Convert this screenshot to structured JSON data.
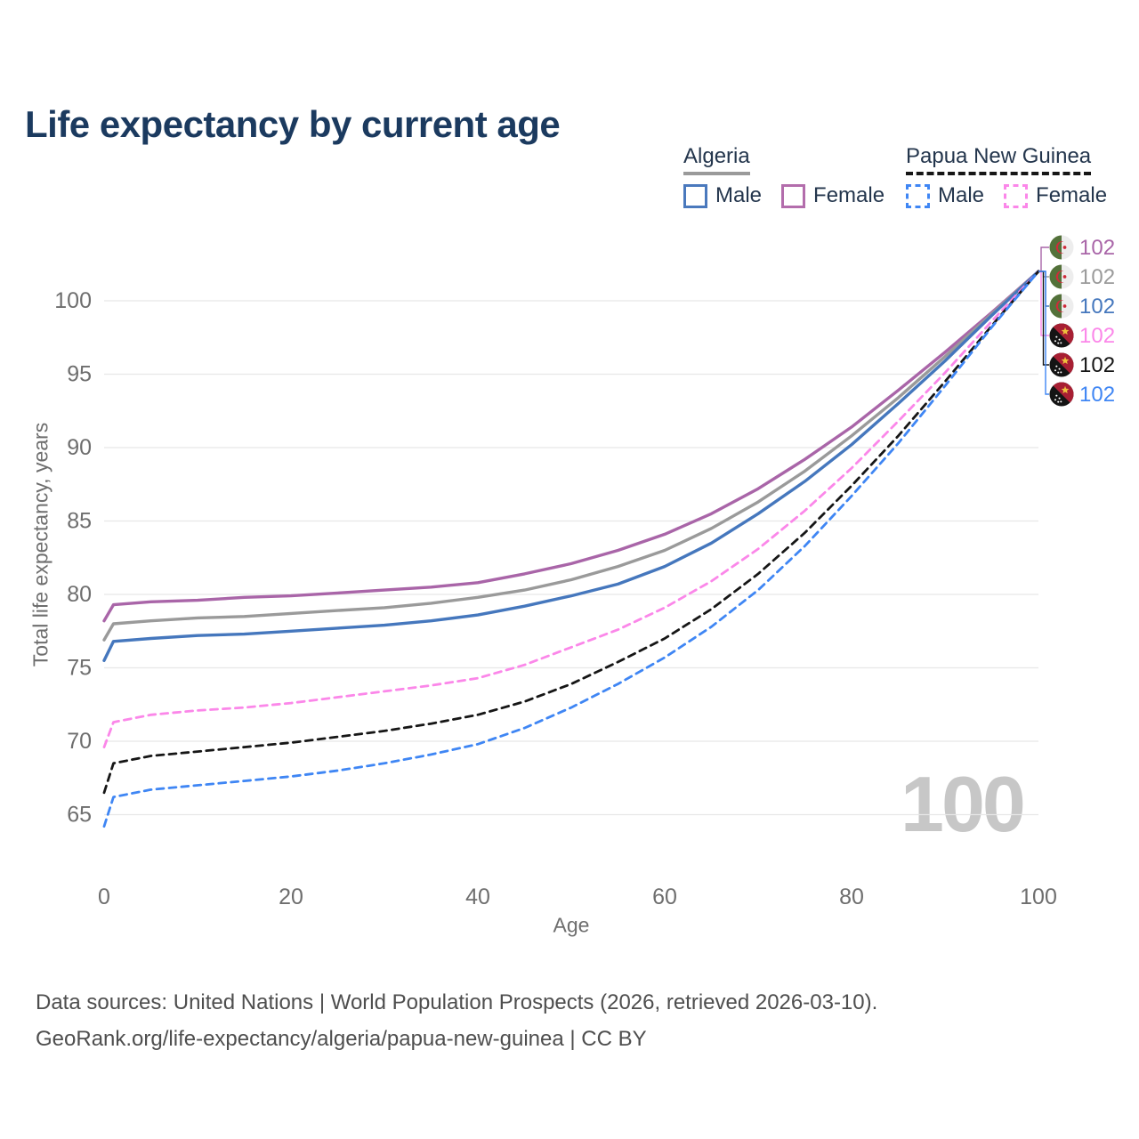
{
  "title": "Life expectancy by current age",
  "watermark_age_counter": "100",
  "axes": {
    "x_title": "Age",
    "y_title": "Total life expectancy, years"
  },
  "legend": {
    "groups": [
      {
        "label": "Algeria",
        "line_style": "solid",
        "underline_color": "#9a9a9a",
        "items": [
          {
            "label": "Male",
            "color": "#4a79bd"
          },
          {
            "label": "Female",
            "color": "#b36dac"
          }
        ]
      },
      {
        "label": "Papua New Guinea",
        "line_style": "dashed",
        "underline_color": "#161616",
        "items": [
          {
            "label": "Male",
            "color": "#3f86f4"
          },
          {
            "label": "Female",
            "color": "#fb87e9"
          }
        ]
      }
    ]
  },
  "chart_data": {
    "type": "line",
    "title": "Life expectancy by current age",
    "xlabel": "Age",
    "ylabel": "Total life expectancy, years",
    "xlim": [
      0,
      100
    ],
    "ylim": [
      62.5,
      103
    ],
    "x_ticks": [
      0,
      20,
      40,
      60,
      80,
      100
    ],
    "y_ticks": [
      65,
      70,
      75,
      80,
      85,
      90,
      95,
      100
    ],
    "grid": "horizontal",
    "grid_color": "#e7e7e7",
    "axis_text_color": "#6e6e6e",
    "legend_position": "top-right",
    "x": [
      0,
      1,
      5,
      10,
      15,
      20,
      25,
      30,
      35,
      40,
      45,
      50,
      55,
      60,
      65,
      70,
      75,
      80,
      85,
      90,
      95,
      100
    ],
    "series": [
      {
        "name": "Algeria Female",
        "country": "Algeria",
        "sex": "Female",
        "color": "#a965a8",
        "dash": "solid",
        "flag": "dz",
        "end_label": "102",
        "values": [
          78.2,
          79.3,
          79.5,
          79.6,
          79.8,
          79.9,
          80.1,
          80.3,
          80.5,
          80.8,
          81.4,
          82.1,
          83.0,
          84.1,
          85.5,
          87.2,
          89.2,
          91.4,
          93.9,
          96.5,
          99.2,
          102
        ]
      },
      {
        "name": "Algeria Both sexes",
        "country": "Algeria",
        "sex": "Both",
        "color": "#9a9a9a",
        "dash": "solid",
        "flag": "dz",
        "end_label": "102",
        "values": [
          76.9,
          78.0,
          78.2,
          78.4,
          78.5,
          78.7,
          78.9,
          79.1,
          79.4,
          79.8,
          80.3,
          81.0,
          81.9,
          83.0,
          84.5,
          86.3,
          88.4,
          90.8,
          93.4,
          96.2,
          99.1,
          102
        ]
      },
      {
        "name": "Algeria Male",
        "country": "Algeria",
        "sex": "Male",
        "color": "#4577bd",
        "dash": "solid",
        "flag": "dz",
        "end_label": "102",
        "values": [
          75.5,
          76.8,
          77.0,
          77.2,
          77.3,
          77.5,
          77.7,
          77.9,
          78.2,
          78.6,
          79.2,
          79.9,
          80.7,
          81.9,
          83.5,
          85.5,
          87.7,
          90.2,
          93.0,
          95.9,
          99.0,
          102
        ]
      },
      {
        "name": "Papua New Guinea Female",
        "country": "Papua New Guinea",
        "sex": "Female",
        "color": "#fb87e9",
        "dash": "dashed",
        "flag": "pg",
        "end_label": "102",
        "values": [
          69.6,
          71.3,
          71.8,
          72.1,
          72.3,
          72.6,
          73.0,
          73.4,
          73.8,
          74.3,
          75.2,
          76.4,
          77.6,
          79.1,
          80.9,
          83.1,
          85.7,
          88.6,
          91.8,
          95.1,
          98.6,
          102
        ]
      },
      {
        "name": "Papua New Guinea Both sexes",
        "country": "Papua New Guinea",
        "sex": "Both",
        "color": "#161616",
        "dash": "dashed",
        "flag": "pg",
        "end_label": "102",
        "values": [
          66.5,
          68.5,
          69.0,
          69.3,
          69.6,
          69.9,
          70.3,
          70.7,
          71.2,
          71.8,
          72.7,
          73.9,
          75.4,
          77.0,
          79.0,
          81.4,
          84.2,
          87.4,
          90.8,
          94.5,
          98.3,
          102
        ]
      },
      {
        "name": "Papua New Guinea Male",
        "country": "Papua New Guinea",
        "sex": "Male",
        "color": "#3f86f4",
        "dash": "dashed",
        "flag": "pg",
        "end_label": "102",
        "values": [
          64.2,
          66.2,
          66.7,
          67.0,
          67.3,
          67.6,
          68.0,
          68.5,
          69.1,
          69.8,
          70.9,
          72.3,
          73.9,
          75.7,
          77.8,
          80.3,
          83.3,
          86.7,
          90.3,
          94.2,
          98.2,
          102
        ]
      }
    ]
  },
  "footer": {
    "line1": "Data sources: United Nations | World Population Prospects (2026, retrieved 2026-03-10).",
    "line2": "GeoRank.org/life-expectancy/algeria/papua-new-guinea | CC BY"
  }
}
